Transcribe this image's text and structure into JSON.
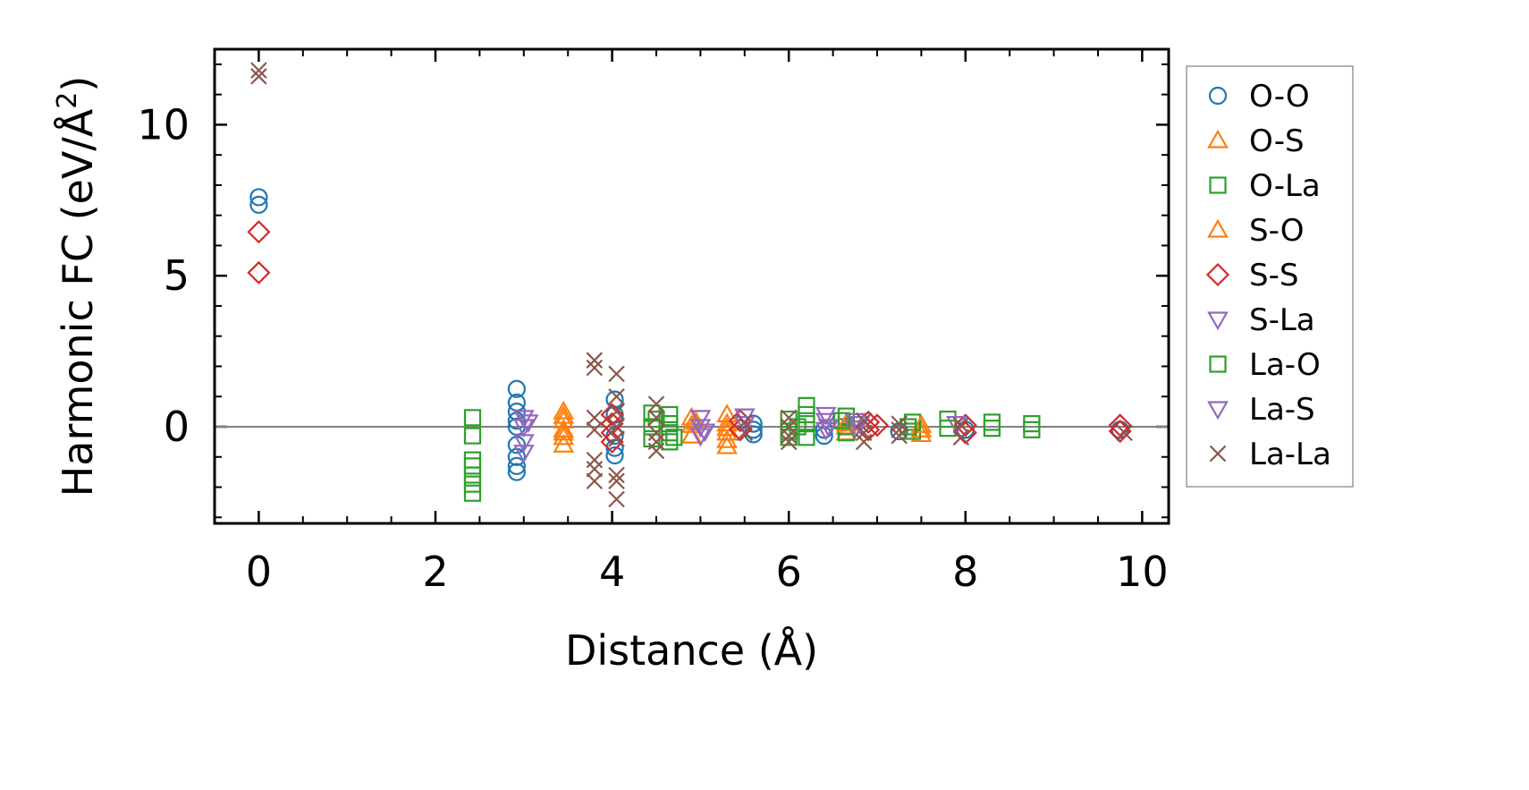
{
  "chart_data": {
    "type": "scatter",
    "xlabel": "Distance (Å)",
    "ylabel_main": "Harmonic FC (eV/Å",
    "ylabel_sup": "2",
    "ylabel_close": ")",
    "xlim": [
      -0.5,
      10.3
    ],
    "ylim": [
      -3.2,
      12.5
    ],
    "xticks": [
      0,
      2,
      4,
      6,
      8,
      10
    ],
    "xtick_labels": [
      "0",
      "2",
      "4",
      "6",
      "8",
      "10"
    ],
    "yticks": [
      0,
      5,
      10
    ],
    "ytick_labels": [
      "0",
      "5",
      "10"
    ],
    "zero_line": true,
    "grid": false,
    "legend_position": "outside-right",
    "series": [
      {
        "name": "O-O",
        "marker": "circle",
        "color": "#1f77b4",
        "points": [
          [
            0,
            7.6
          ],
          [
            0,
            7.35
          ],
          [
            2.92,
            1.25
          ],
          [
            2.92,
            0.8
          ],
          [
            2.92,
            0.5
          ],
          [
            2.92,
            0.2
          ],
          [
            2.92,
            0.0
          ],
          [
            2.92,
            -0.6
          ],
          [
            2.92,
            -1.0
          ],
          [
            2.92,
            -1.3
          ],
          [
            2.92,
            -1.5
          ],
          [
            4.03,
            0.9
          ],
          [
            4.03,
            0.4
          ],
          [
            4.03,
            -0.3
          ],
          [
            4.03,
            -0.7
          ],
          [
            4.03,
            -0.95
          ],
          [
            5.6,
            0.1
          ],
          [
            5.6,
            -0.1
          ],
          [
            5.6,
            -0.25
          ],
          [
            6.4,
            -0.1
          ],
          [
            6.4,
            -0.3
          ],
          [
            7.25,
            -0.15
          ],
          [
            8.0,
            -0.1
          ],
          [
            9.75,
            -0.1
          ]
        ]
      },
      {
        "name": "O-S",
        "marker": "triangle-up",
        "color": "#ff7f0e",
        "points": [
          [
            3.45,
            0.5
          ],
          [
            3.45,
            0.2
          ],
          [
            3.45,
            -0.1
          ],
          [
            3.45,
            -0.35
          ],
          [
            3.45,
            -0.6
          ],
          [
            4.9,
            0.3
          ],
          [
            4.9,
            0.05
          ],
          [
            4.9,
            -0.3
          ],
          [
            5.3,
            0.4
          ],
          [
            5.3,
            0.1
          ],
          [
            5.3,
            -0.2
          ],
          [
            5.3,
            -0.45
          ],
          [
            5.3,
            -0.65
          ],
          [
            6.65,
            0.0
          ],
          [
            6.65,
            -0.2
          ],
          [
            7.5,
            -0.1
          ],
          [
            7.5,
            -0.25
          ]
        ]
      },
      {
        "name": "O-La",
        "marker": "square",
        "color": "#2ca02c",
        "points": [
          [
            2.42,
            0.3
          ],
          [
            2.42,
            -0.3
          ],
          [
            2.42,
            -1.1
          ],
          [
            2.42,
            -1.3
          ],
          [
            2.42,
            -1.6
          ],
          [
            2.42,
            -1.9
          ],
          [
            2.42,
            -2.2
          ],
          [
            4.45,
            0.45
          ],
          [
            4.45,
            0.0
          ],
          [
            4.45,
            -0.4
          ],
          [
            4.65,
            0.4
          ],
          [
            4.65,
            0.1
          ],
          [
            4.65,
            -0.2
          ],
          [
            4.65,
            -0.5
          ],
          [
            6.0,
            0.25
          ],
          [
            6.0,
            -0.15
          ],
          [
            6.0,
            -0.35
          ],
          [
            6.2,
            0.7
          ],
          [
            6.2,
            0.4
          ],
          [
            6.2,
            0.1
          ],
          [
            6.2,
            -0.35
          ],
          [
            6.65,
            0.35
          ],
          [
            6.65,
            0.0
          ],
          [
            6.65,
            -0.2
          ],
          [
            7.4,
            0.15
          ],
          [
            7.4,
            -0.15
          ],
          [
            7.8,
            0.25
          ],
          [
            7.8,
            -0.05
          ],
          [
            8.3,
            0.15
          ],
          [
            8.3,
            -0.05
          ],
          [
            8.75,
            0.1
          ],
          [
            8.75,
            -0.1
          ]
        ]
      },
      {
        "name": "S-O",
        "marker": "triangle-up",
        "color": "#ff7f0e",
        "points": [
          [
            3.45,
            0.35
          ],
          [
            3.45,
            -0.2
          ],
          [
            4.95,
            0.15
          ],
          [
            5.3,
            -0.05
          ],
          [
            6.65,
            0.1
          ],
          [
            7.5,
            0.05
          ]
        ]
      },
      {
        "name": "S-S",
        "marker": "diamond",
        "color": "#d62728",
        "points": [
          [
            0,
            6.45
          ],
          [
            0,
            5.1
          ],
          [
            4.0,
            0.4
          ],
          [
            4.0,
            0.1
          ],
          [
            4.0,
            -0.2
          ],
          [
            4.0,
            -0.5
          ],
          [
            5.45,
            0.2
          ],
          [
            5.45,
            -0.1
          ],
          [
            6.9,
            0.15
          ],
          [
            6.9,
            -0.1
          ],
          [
            7.0,
            0.05
          ],
          [
            8.0,
            0.05
          ],
          [
            8.0,
            -0.2
          ],
          [
            9.75,
            0.05
          ],
          [
            9.75,
            -0.15
          ]
        ]
      },
      {
        "name": "S-La",
        "marker": "triangle-down",
        "color": "#9467bd",
        "points": [
          [
            3.0,
            0.3
          ],
          [
            3.0,
            0.0
          ],
          [
            3.0,
            -0.5
          ],
          [
            3.0,
            -0.85
          ],
          [
            5.0,
            0.3
          ],
          [
            5.0,
            0.0
          ],
          [
            5.0,
            -0.3
          ],
          [
            5.5,
            0.35
          ],
          [
            5.5,
            0.1
          ],
          [
            6.42,
            0.4
          ],
          [
            6.42,
            0.2
          ],
          [
            6.42,
            -0.1
          ],
          [
            6.75,
            0.2
          ],
          [
            6.75,
            -0.05
          ],
          [
            7.9,
            0.1
          ]
        ]
      },
      {
        "name": "La-O",
        "marker": "square",
        "color": "#2ca02c",
        "points": [
          [
            4.5,
            0.25
          ],
          [
            4.7,
            -0.35
          ],
          [
            6.1,
            0.0
          ],
          [
            6.6,
            0.2
          ],
          [
            7.35,
            0.0
          ]
        ]
      },
      {
        "name": "La-S",
        "marker": "triangle-down",
        "color": "#9467bd",
        "points": [
          [
            3.05,
            0.15
          ],
          [
            5.05,
            -0.15
          ],
          [
            6.45,
            0.0
          ],
          [
            6.8,
            0.1
          ]
        ]
      },
      {
        "name": "La-La",
        "marker": "x",
        "color": "#8c564b",
        "points": [
          [
            0,
            11.8
          ],
          [
            0,
            11.6
          ],
          [
            3.8,
            2.2
          ],
          [
            3.8,
            1.95
          ],
          [
            3.8,
            0.3
          ],
          [
            3.8,
            -0.1
          ],
          [
            3.8,
            -1.1
          ],
          [
            3.8,
            -1.4
          ],
          [
            3.8,
            -1.8
          ],
          [
            4.05,
            1.75
          ],
          [
            4.05,
            1.0
          ],
          [
            4.05,
            0.5
          ],
          [
            4.05,
            0.0
          ],
          [
            4.05,
            -0.4
          ],
          [
            4.05,
            -1.6
          ],
          [
            4.05,
            -1.8
          ],
          [
            4.05,
            -2.4
          ],
          [
            4.5,
            0.75
          ],
          [
            4.5,
            0.3
          ],
          [
            4.5,
            -0.2
          ],
          [
            4.5,
            -0.5
          ],
          [
            4.5,
            -0.8
          ],
          [
            5.5,
            0.15
          ],
          [
            5.5,
            -0.2
          ],
          [
            6.0,
            0.3
          ],
          [
            6.0,
            0.0
          ],
          [
            6.0,
            -0.3
          ],
          [
            6.0,
            -0.5
          ],
          [
            6.85,
            0.2
          ],
          [
            6.85,
            -0.2
          ],
          [
            6.85,
            -0.5
          ],
          [
            7.25,
            0.1
          ],
          [
            7.25,
            -0.1
          ],
          [
            7.25,
            -0.3
          ],
          [
            7.95,
            0.05
          ],
          [
            7.95,
            -0.35
          ],
          [
            9.8,
            -0.2
          ]
        ]
      }
    ]
  }
}
